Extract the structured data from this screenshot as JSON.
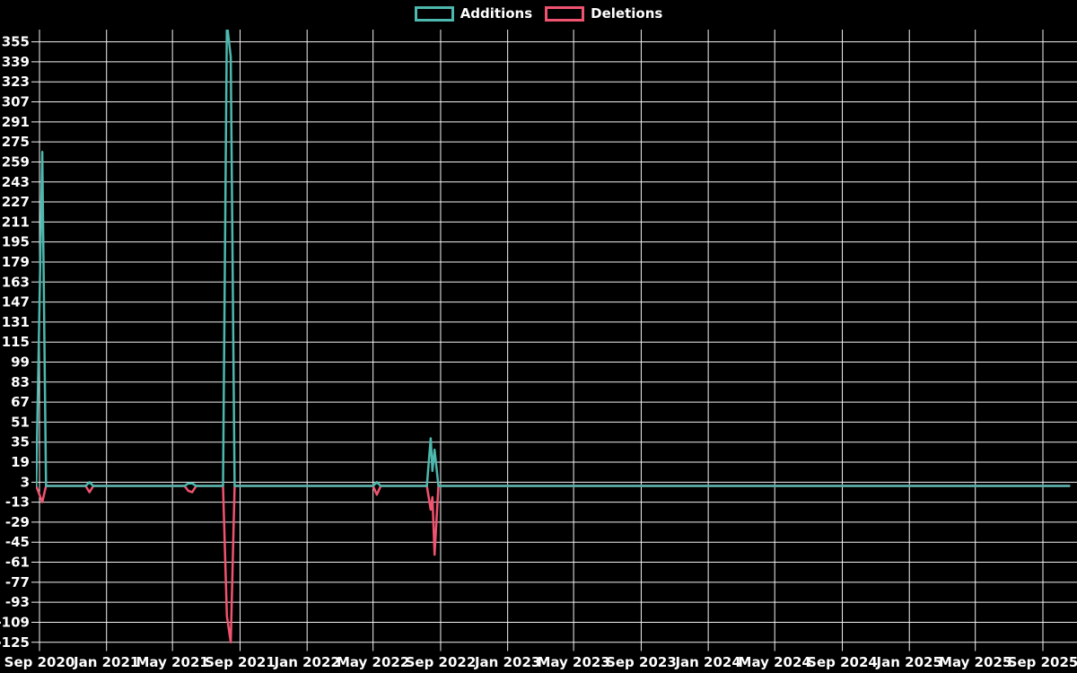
{
  "colors": {
    "background": "#000000",
    "grid": "#f2f2f2",
    "text": "#ffffff",
    "additions": "#4db8ae",
    "deletions": "#f0536f"
  },
  "legend": {
    "additions_label": "Additions",
    "deletions_label": "Deletions"
  },
  "chart_data": {
    "type": "line",
    "title": "",
    "xlabel": "",
    "ylabel": "",
    "grid": true,
    "legend_position": "top-center",
    "x_axis": {
      "tick_labels": [
        "Sep 2020",
        "Jan 2021",
        "May 2021",
        "Sep 2021",
        "Jan 2022",
        "May 2022",
        "Sep 2022",
        "Jan 2023",
        "May 2023",
        "Sep 2023",
        "Jan 2024",
        "May 2024",
        "Sep 2024",
        "Jan 2025",
        "May 2025",
        "Sep 2025"
      ]
    },
    "y_axis": {
      "ticks": [
        355,
        339,
        323,
        307,
        291,
        275,
        259,
        243,
        227,
        211,
        195,
        179,
        163,
        147,
        131,
        115,
        99,
        83,
        67,
        51,
        35,
        19,
        3,
        -13,
        -29,
        -45,
        -61,
        -77,
        -93,
        -109,
        -125
      ],
      "ylim_displayed": [
        -133,
        364
      ]
    },
    "series": [
      {
        "name": "Additions",
        "color": "#4db8ae",
        "points": [
          [
            "2020-08-26",
            0
          ],
          [
            "2020-09-06",
            267
          ],
          [
            "2020-09-13",
            0
          ],
          [
            "2020-11-24",
            0
          ],
          [
            "2020-12-01",
            3
          ],
          [
            "2020-12-08",
            0
          ],
          [
            "2021-05-23",
            0
          ],
          [
            "2021-05-30",
            2
          ],
          [
            "2021-06-06",
            2
          ],
          [
            "2021-06-13",
            0
          ],
          [
            "2021-08-01",
            0
          ],
          [
            "2021-08-08",
            370
          ],
          [
            "2021-08-15",
            343
          ],
          [
            "2021-08-22",
            0
          ],
          [
            "2022-05-01",
            0
          ],
          [
            "2022-05-08",
            3
          ],
          [
            "2022-05-15",
            0
          ],
          [
            "2022-08-07",
            0
          ],
          [
            "2022-08-14",
            38
          ],
          [
            "2022-08-17",
            12
          ],
          [
            "2022-08-21",
            29
          ],
          [
            "2022-08-28",
            0
          ],
          [
            "2025-10-19",
            0
          ]
        ]
      },
      {
        "name": "Deletions",
        "color": "#f0536f",
        "points": [
          [
            "2020-08-26",
            0
          ],
          [
            "2020-09-06",
            -13
          ],
          [
            "2020-09-13",
            0
          ],
          [
            "2020-11-24",
            0
          ],
          [
            "2020-12-01",
            -5
          ],
          [
            "2020-12-08",
            0
          ],
          [
            "2021-05-23",
            0
          ],
          [
            "2021-05-30",
            -4
          ],
          [
            "2021-06-06",
            -5
          ],
          [
            "2021-06-13",
            0
          ],
          [
            "2021-08-01",
            0
          ],
          [
            "2021-08-08",
            -104
          ],
          [
            "2021-08-15",
            -125
          ],
          [
            "2021-08-22",
            0
          ],
          [
            "2022-05-01",
            0
          ],
          [
            "2022-05-08",
            -7
          ],
          [
            "2022-05-15",
            0
          ],
          [
            "2022-08-07",
            0
          ],
          [
            "2022-08-14",
            -19
          ],
          [
            "2022-08-17",
            -9
          ],
          [
            "2022-08-21",
            -55
          ],
          [
            "2022-08-28",
            0
          ],
          [
            "2025-10-19",
            0
          ]
        ]
      }
    ]
  }
}
